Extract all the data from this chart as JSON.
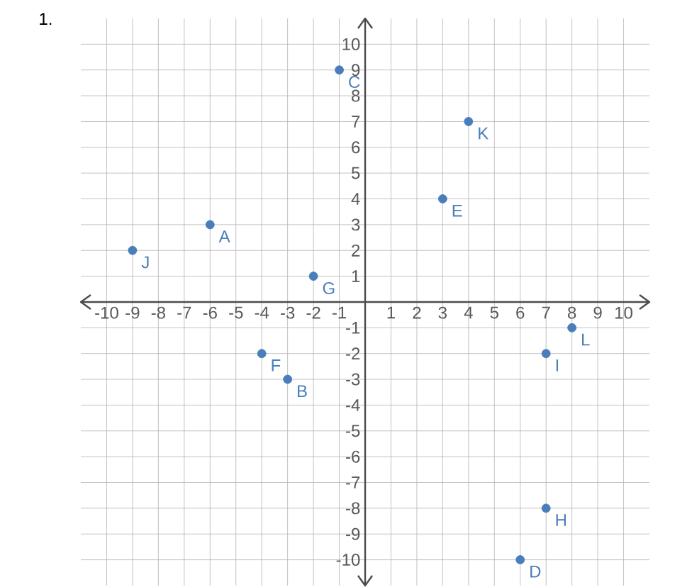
{
  "chart_data": {
    "type": "scatter",
    "title": "1.",
    "x": [
      -6,
      -3,
      -1,
      6,
      3,
      -4,
      -2,
      7,
      7,
      -9,
      4,
      8
    ],
    "values": [
      3,
      -3,
      9,
      -10,
      4,
      -2,
      1,
      -8,
      -2,
      2,
      7,
      -1
    ],
    "value_labels": [
      "A",
      "B",
      "C",
      "D",
      "E",
      "F",
      "G",
      "H",
      "I",
      "J",
      "K",
      "L"
    ],
    "color": "#4a7ebb",
    "marker": "circle",
    "xlim": [
      -11,
      11
    ],
    "ylim": [
      -11,
      11
    ],
    "xticks": [
      -10,
      -9,
      -8,
      -7,
      -6,
      -5,
      -4,
      -3,
      -2,
      -1,
      1,
      2,
      3,
      4,
      5,
      6,
      7,
      8,
      9,
      10
    ],
    "yticks": [
      -10,
      -9,
      -8,
      -7,
      -6,
      -5,
      -4,
      -3,
      -2,
      -1,
      1,
      2,
      3,
      4,
      5,
      6,
      7,
      8,
      9,
      10
    ],
    "grid": true
  }
}
